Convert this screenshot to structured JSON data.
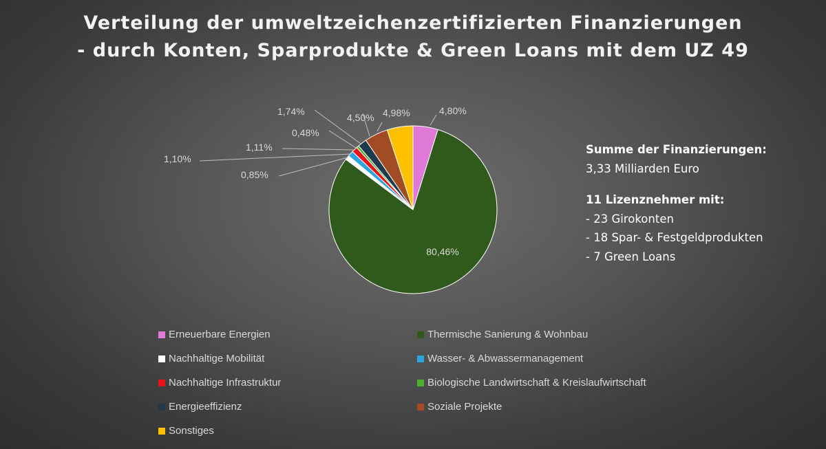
{
  "chart_data": {
    "type": "pie",
    "title": [
      "Verteilung der umweltzeichenzertifizierten Finanzierungen",
      "- durch Konten, Sparprodukte & Green Loans mit dem UZ 49"
    ],
    "slices": [
      {
        "name": "Erneuerbare Energien",
        "value": 4.8,
        "label": "4,80%",
        "color": "#e07ad8"
      },
      {
        "name": "Thermische Sanierung & Wohnbau",
        "value": 80.46,
        "label": "80,46%",
        "color": "#2f5a1c"
      },
      {
        "name": "Nachhaltige Mobilität",
        "value": 0.85,
        "label": "0,85%",
        "color": "#ffffff"
      },
      {
        "name": "Wasser- & Abwassermanagement",
        "value": 1.1,
        "label": "1,10%",
        "color": "#2ea3dc"
      },
      {
        "name": "Nachhaltige Infrastruktur",
        "value": 1.11,
        "label": "1,11%",
        "color": "#e8121b"
      },
      {
        "name": "Biologische Landwirtschaft & Kreislaufwirtschaft",
        "value": 0.48,
        "label": "0,48%",
        "color": "#4caf2e"
      },
      {
        "name": "Energieeffizienz",
        "value": 1.74,
        "label": "1,74%",
        "color": "#1f3a4d"
      },
      {
        "name": "Soziale Projekte",
        "value": 4.5,
        "label": "4,50%",
        "color": "#a14c22"
      },
      {
        "name": "Sonstiges",
        "value": 4.98,
        "label": "4,98%",
        "color": "#ffc000"
      }
    ],
    "legend_position": "bottom"
  },
  "summary": {
    "heading": "Summe der Finanzierungen:",
    "total": "3,33 Milliarden Euro",
    "licensees_heading": "11 Lizenznehmer mit:",
    "items": [
      "- 23 Girokonten",
      "- 18 Spar- & Festgeldprodukten",
      "- 7 Green Loans"
    ]
  }
}
